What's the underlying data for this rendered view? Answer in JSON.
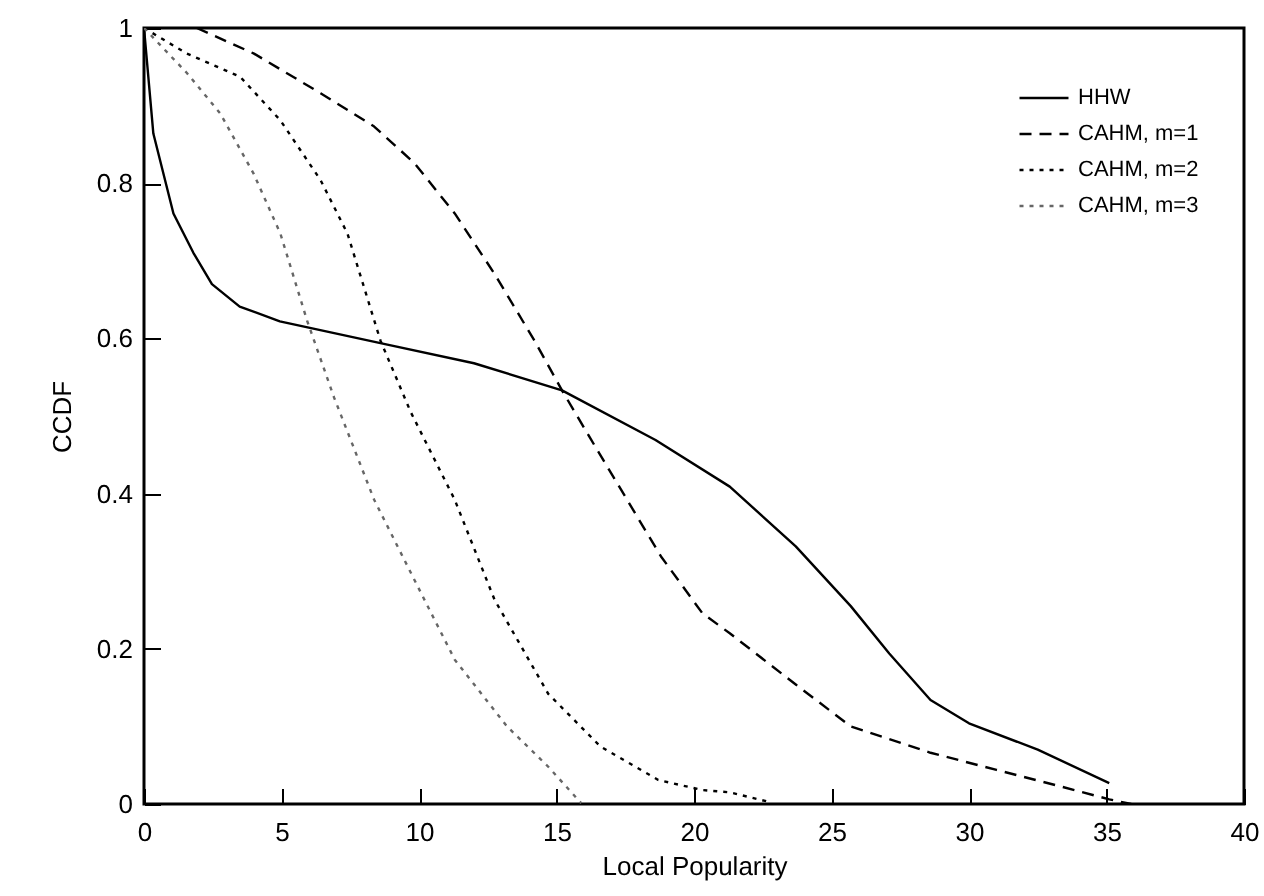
{
  "chart_data": {
    "type": "line",
    "xlabel": "Local Popularity",
    "ylabel": "CCDF",
    "xlim": [
      0,
      40
    ],
    "xticks": [
      0,
      5,
      10,
      15,
      20,
      25,
      30,
      35,
      40
    ],
    "ylim": [
      0,
      1
    ],
    "yticks": [
      0,
      0.2,
      0.4,
      0.6,
      0.8,
      1
    ],
    "legend": "top right",
    "series": [
      {
        "name": "HHW",
        "color": "#000000",
        "line_style": "solid",
        "x": [
          0,
          0.34,
          1.07,
          1.8,
          2.47,
          3.48,
          4.94,
          8.85,
          12.0,
          15.2,
          18.6,
          21.3,
          23.7,
          25.7,
          27.1,
          28.6,
          30.0,
          32.5,
          35.1
        ],
        "values": [
          1,
          0.864,
          0.761,
          0.71,
          0.67,
          0.641,
          0.622,
          0.592,
          0.568,
          0.533,
          0.469,
          0.409,
          0.332,
          0.255,
          0.194,
          0.134,
          0.104,
          0.07,
          0.027
        ]
      },
      {
        "name": "CAHM, m=1",
        "color": "#000000",
        "line_style": "dashed",
        "x": [
          1.92,
          4.0,
          6.42,
          8.37,
          9.83,
          11.3,
          12.75,
          14.2,
          15.2,
          16.2,
          18.8,
          20.3,
          21.3,
          23.7,
          25.7,
          28.6,
          31.0,
          33.4,
          35.1,
          35.9
        ],
        "values": [
          1,
          0.967,
          0.916,
          0.873,
          0.826,
          0.761,
          0.683,
          0.597,
          0.533,
          0.473,
          0.319,
          0.246,
          0.22,
          0.154,
          0.1,
          0.066,
          0.044,
          0.022,
          0.006,
          0
        ]
      },
      {
        "name": "CAHM, m=2",
        "color": "#000000",
        "line_style": "dotted",
        "x": [
          0,
          1.56,
          3.5,
          4.96,
          6.42,
          7.4,
          8.6,
          9.7,
          11.3,
          12.75,
          14.7,
          16.6,
          18.7,
          20.3,
          21.3,
          22.7
        ],
        "values": [
          1,
          0.967,
          0.937,
          0.881,
          0.804,
          0.735,
          0.597,
          0.505,
          0.392,
          0.263,
          0.142,
          0.074,
          0.031,
          0.018,
          0.015,
          0.003
        ]
      },
      {
        "name": "CAHM, m=3",
        "color": "#666666",
        "line_style": "dotted",
        "x": [
          0,
          1.56,
          2.77,
          3.99,
          4.96,
          5.93,
          6.91,
          8.37,
          9.83,
          11.3,
          13.2,
          14.7,
          15.9
        ],
        "values": [
          1,
          0.942,
          0.89,
          0.812,
          0.735,
          0.623,
          0.524,
          0.392,
          0.289,
          0.186,
          0.1,
          0.048,
          0.001
        ]
      }
    ]
  }
}
